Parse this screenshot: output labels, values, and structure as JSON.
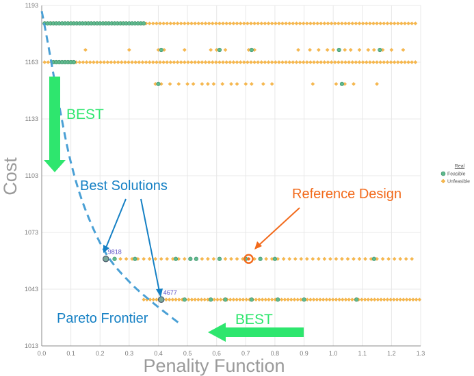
{
  "chart_data": {
    "type": "scatter",
    "title": "",
    "xlabel": "Penality Function",
    "ylabel": "Cost",
    "xlim": [
      0.0,
      1.3
    ],
    "ylim": [
      1013,
      1193
    ],
    "x_ticks": [
      "0.0",
      "0.1",
      "0.2",
      "0.3",
      "0.4",
      "0.5",
      "0.6",
      "0.7",
      "0.8",
      "0.9",
      "1.0",
      "1.1",
      "1.2",
      "1.3"
    ],
    "y_ticks": [
      "1013",
      "1043",
      "1073",
      "1103",
      "1133",
      "1163",
      "1193"
    ],
    "grid": true,
    "legend": {
      "title": "Real",
      "placement": "right",
      "entries": [
        {
          "label": "Feasible",
          "color": "#5fb98e"
        },
        {
          "label": "Unfeasible",
          "color": "#f7b84d"
        }
      ]
    },
    "series": [
      {
        "name": "Feasible",
        "color": "#5fb98e",
        "rows": [
          {
            "y": 1183.5,
            "x_start": 0.01,
            "x_end": 0.35,
            "step": 0.01
          },
          {
            "y": 1163,
            "x_start": 0.04,
            "x_end": 0.11,
            "step": 0.01
          },
          {
            "y": 1169.5,
            "x": [
              0.41,
              0.61,
              0.72,
              1.02,
              1.16
            ]
          },
          {
            "y": 1151.5,
            "x": [
              0.4,
              1.03
            ]
          },
          {
            "y": 1059,
            "x": [
              0.22,
              0.25,
              0.32,
              0.46,
              0.51,
              0.53,
              0.61,
              0.7,
              0.75,
              0.8,
              1.14
            ]
          },
          {
            "y": 1037.5,
            "x": [
              0.41,
              0.49,
              0.58,
              0.63,
              0.72,
              0.81,
              0.9,
              1.08
            ]
          }
        ]
      },
      {
        "name": "Unfeasible",
        "color": "#f7b84d",
        "rows": [
          {
            "y": 1183.5,
            "x_start": 0.01,
            "x_end": 1.29,
            "step": 0.012
          },
          {
            "y": 1163,
            "x_start": 0.01,
            "x_end": 1.29,
            "step": 0.012
          },
          {
            "y": 1169.5,
            "x": [
              0.15,
              0.3,
              0.4,
              0.42,
              0.49,
              0.58,
              0.6,
              0.63,
              0.71,
              0.73,
              0.88,
              0.92,
              0.95,
              0.98,
              1.0,
              1.04,
              1.06,
              1.09,
              1.12,
              1.14,
              1.17,
              1.2,
              1.24
            ]
          },
          {
            "y": 1151.5,
            "x": [
              0.39,
              0.41,
              0.44,
              0.47,
              0.5,
              0.52,
              0.55,
              0.57,
              0.59,
              0.62,
              0.65,
              0.67,
              0.7,
              0.72,
              0.76,
              0.79,
              0.93,
              1.01,
              1.04,
              1.07,
              1.15
            ]
          },
          {
            "y": 1059,
            "x_start": 0.25,
            "x_end": 1.28,
            "step": 0.02
          },
          {
            "y": 1037.5,
            "x_start": 0.35,
            "x_end": 1.3,
            "step": 0.011
          }
        ]
      }
    ],
    "highlighted_points": [
      {
        "id": "9818",
        "x": 0.22,
        "y": 1059,
        "category": "Feasible"
      },
      {
        "id": "4677",
        "x": 0.41,
        "y": 1037.5,
        "category": "Feasible"
      }
    ],
    "reference_design": {
      "x": 0.71,
      "y": 1059
    },
    "pareto_frontier": [
      [
        0.0,
        1190
      ],
      [
        0.02,
        1174
      ],
      [
        0.06,
        1140
      ],
      [
        0.1,
        1110
      ],
      [
        0.15,
        1085
      ],
      [
        0.22,
        1062
      ],
      [
        0.3,
        1047
      ],
      [
        0.38,
        1036
      ],
      [
        0.48,
        1024
      ]
    ],
    "annotations": {
      "best_vertical": "BEST",
      "best_horizontal": "BEST",
      "best_solutions": "Best Solutions",
      "reference_design": "Reference Design",
      "pareto_frontier": "Pareto Frontier"
    },
    "colors": {
      "feasible": "#5fb98e",
      "unfeasible": "#f7b84d",
      "best_arrow": "#2ee66e",
      "blue_annotation": "#1580c4",
      "frontier": "#4aa0d5",
      "reference": "#f26a1b",
      "point_label": "#5c4fc8",
      "grid": "#e8e8e8",
      "axis_title": "#9a9a9a"
    }
  }
}
